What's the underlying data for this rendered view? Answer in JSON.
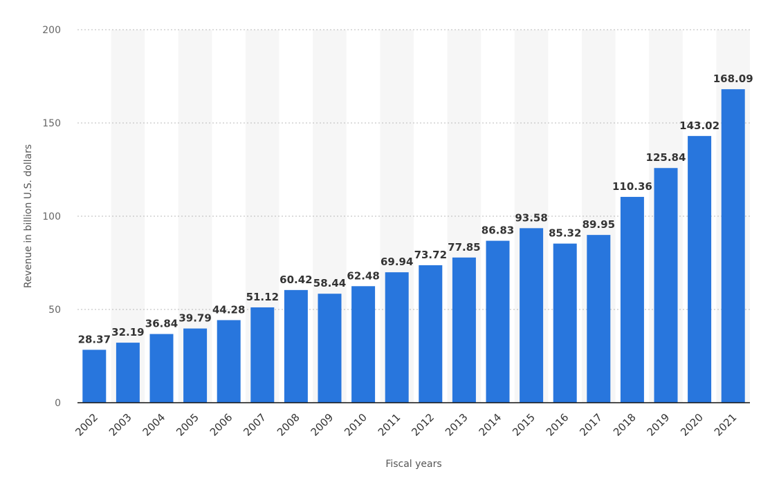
{
  "chart_data": {
    "type": "bar",
    "title": "",
    "xlabel": "Fiscal years",
    "ylabel": "Revenue in billion U.S. dollars",
    "ylim": [
      0,
      200
    ],
    "yticks": [
      0,
      50,
      100,
      150,
      200
    ],
    "grid": true,
    "bar_color": "#2876dd",
    "categories": [
      "2002",
      "2003",
      "2004",
      "2005",
      "2006",
      "2007",
      "2008",
      "2009",
      "2010",
      "2011",
      "2012",
      "2013",
      "2014",
      "2015",
      "2016",
      "2017",
      "2018",
      "2019",
      "2020",
      "2021"
    ],
    "values": [
      28.37,
      32.19,
      36.84,
      39.79,
      44.28,
      51.12,
      60.42,
      58.44,
      62.48,
      69.94,
      73.72,
      77.85,
      86.83,
      93.58,
      85.32,
      89.95,
      110.36,
      125.84,
      143.02,
      168.09
    ],
    "value_labels": [
      "28.37",
      "32.19",
      "36.84",
      "39.79",
      "44.28",
      "51.12",
      "60.42",
      "58.44",
      "62.48",
      "69.94",
      "73.72",
      "77.85",
      "86.83",
      "93.58",
      "85.32",
      "89.95",
      "110.36",
      "125.84",
      "143.02",
      "168.09"
    ]
  }
}
